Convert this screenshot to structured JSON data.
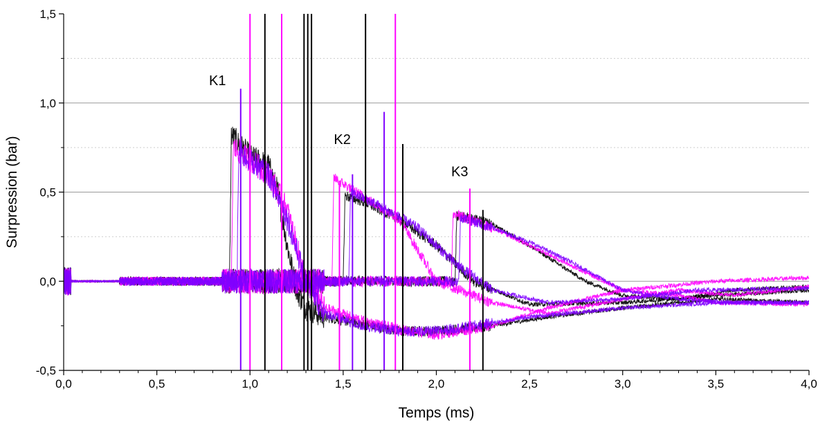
{
  "chart_data": {
    "type": "line",
    "title": "",
    "xlabel": "Temps (ms)",
    "ylabel": "Surpression (bar)",
    "xlim": [
      0.0,
      4.0
    ],
    "ylim": [
      -0.5,
      1.5
    ],
    "x_ticks": [
      "0,0",
      "0,5",
      "1,0",
      "1,5",
      "2,0",
      "2,5",
      "3,0",
      "3,5",
      "4,0"
    ],
    "y_ticks": [
      "-0,5",
      "0,0",
      "0,5",
      "1,0",
      "1,5"
    ],
    "major_gridlines_y": [
      0.0,
      0.5,
      1.0
    ],
    "minor_gridlines_y": [
      0.25,
      0.75,
      1.25
    ],
    "annotations": [
      {
        "text": "K1",
        "x": 0.78,
        "y": 1.1
      },
      {
        "text": "K2",
        "x": 1.45,
        "y": 0.77
      },
      {
        "text": "K3",
        "x": 2.08,
        "y": 0.59
      }
    ],
    "colors": {
      "black": "#000000",
      "magenta": "#ff00ff",
      "violet": "#7f00ff"
    },
    "series": [
      {
        "color": "black",
        "x": [
          0.0,
          0.85,
          0.89,
          0.9,
          1.0,
          1.1,
          1.15,
          1.2,
          1.25,
          1.3,
          1.4,
          1.6,
          1.8,
          2.0,
          2.3,
          2.6,
          3.0,
          3.5,
          4.0
        ],
        "y": [
          0.0,
          0.0,
          0.0,
          0.82,
          0.7,
          0.65,
          0.5,
          0.2,
          -0.05,
          -0.15,
          -0.2,
          -0.24,
          -0.28,
          -0.28,
          -0.25,
          -0.2,
          -0.15,
          -0.1,
          -0.12
        ]
      },
      {
        "color": "black",
        "x": [
          0.0,
          1.5,
          1.51,
          1.6,
          1.8,
          2.0,
          2.2,
          2.5,
          3.0,
          3.5,
          4.0
        ],
        "y": [
          0.0,
          0.0,
          0.48,
          0.45,
          0.35,
          0.2,
          0.0,
          -0.13,
          -0.12,
          -0.08,
          -0.05
        ]
      },
      {
        "color": "black",
        "x": [
          0.0,
          2.1,
          2.11,
          2.3,
          2.5,
          2.8,
          3.0,
          3.3,
          3.6,
          4.0
        ],
        "y": [
          0.0,
          0.0,
          0.37,
          0.32,
          0.2,
          0.0,
          -0.08,
          -0.1,
          -0.05,
          -0.03
        ]
      },
      {
        "color": "magenta",
        "x": [
          0.0,
          0.9,
          0.91,
          1.0,
          1.1,
          1.2,
          1.3,
          1.4,
          1.6,
          1.8,
          2.0,
          2.3,
          2.6,
          3.0,
          3.5,
          4.0
        ],
        "y": [
          0.0,
          0.0,
          0.75,
          0.68,
          0.6,
          0.4,
          0.0,
          -0.15,
          -0.22,
          -0.27,
          -0.3,
          -0.25,
          -0.15,
          -0.05,
          0.0,
          0.02
        ]
      },
      {
        "color": "magenta",
        "x": [
          0.0,
          1.44,
          1.45,
          1.6,
          1.8,
          2.0,
          2.3,
          2.6,
          3.0,
          3.3,
          3.6,
          4.0
        ],
        "y": [
          0.0,
          0.0,
          0.58,
          0.48,
          0.35,
          0.0,
          -0.12,
          -0.18,
          -0.1,
          -0.05,
          -0.08,
          -0.03
        ]
      },
      {
        "color": "magenta",
        "x": [
          0.0,
          2.08,
          2.09,
          2.3,
          2.5,
          2.8,
          3.0,
          3.3,
          3.5,
          4.0
        ],
        "y": [
          0.0,
          0.0,
          0.38,
          0.3,
          0.2,
          0.05,
          -0.05,
          -0.08,
          -0.12,
          -0.13
        ]
      },
      {
        "color": "violet",
        "x": [
          0.0,
          0.93,
          0.94,
          1.0,
          1.1,
          1.2,
          1.3,
          1.4,
          1.6,
          1.8,
          2.0,
          2.2,
          2.5,
          3.0,
          3.5,
          4.0
        ],
        "y": [
          0.0,
          0.0,
          0.72,
          0.68,
          0.6,
          0.35,
          0.0,
          -0.18,
          -0.25,
          -0.28,
          -0.28,
          -0.25,
          -0.2,
          -0.15,
          -0.12,
          -0.12
        ]
      },
      {
        "color": "violet",
        "x": [
          0.0,
          1.53,
          1.54,
          1.7,
          1.9,
          2.1,
          2.3,
          2.6,
          3.0,
          3.4,
          4.0
        ],
        "y": [
          0.0,
          0.0,
          0.5,
          0.42,
          0.3,
          0.1,
          -0.05,
          -0.12,
          -0.1,
          -0.05,
          -0.04
        ]
      },
      {
        "color": "violet",
        "x": [
          0.0,
          2.12,
          2.13,
          2.3,
          2.5,
          2.7,
          3.0,
          3.3,
          3.6,
          4.0
        ],
        "y": [
          0.0,
          0.0,
          0.36,
          0.3,
          0.22,
          0.12,
          -0.05,
          -0.1,
          -0.12,
          -0.12
        ]
      }
    ],
    "spikes": [
      {
        "x": 0.95,
        "y": 1.08,
        "color": "violet"
      },
      {
        "x": 1.0,
        "y": 1.5,
        "color": "magenta"
      },
      {
        "x": 1.08,
        "y": 1.5,
        "color": "black"
      },
      {
        "x": 1.17,
        "y": 1.5,
        "color": "magenta"
      },
      {
        "x": 1.29,
        "y": 1.5,
        "color": "black"
      },
      {
        "x": 1.31,
        "y": 1.5,
        "color": "black"
      },
      {
        "x": 1.33,
        "y": 1.5,
        "color": "black"
      },
      {
        "x": 1.62,
        "y": 1.5,
        "color": "black"
      },
      {
        "x": 1.72,
        "y": 0.95,
        "color": "violet"
      },
      {
        "x": 1.78,
        "y": 1.5,
        "color": "magenta"
      },
      {
        "x": 1.82,
        "y": 0.77,
        "color": "black"
      },
      {
        "x": 1.55,
        "y": 0.6,
        "color": "violet"
      },
      {
        "x": 1.48,
        "y": 0.55,
        "color": "magenta"
      },
      {
        "x": 2.25,
        "y": 0.4,
        "color": "black"
      },
      {
        "x": 2.18,
        "y": 0.52,
        "color": "magenta"
      }
    ]
  }
}
